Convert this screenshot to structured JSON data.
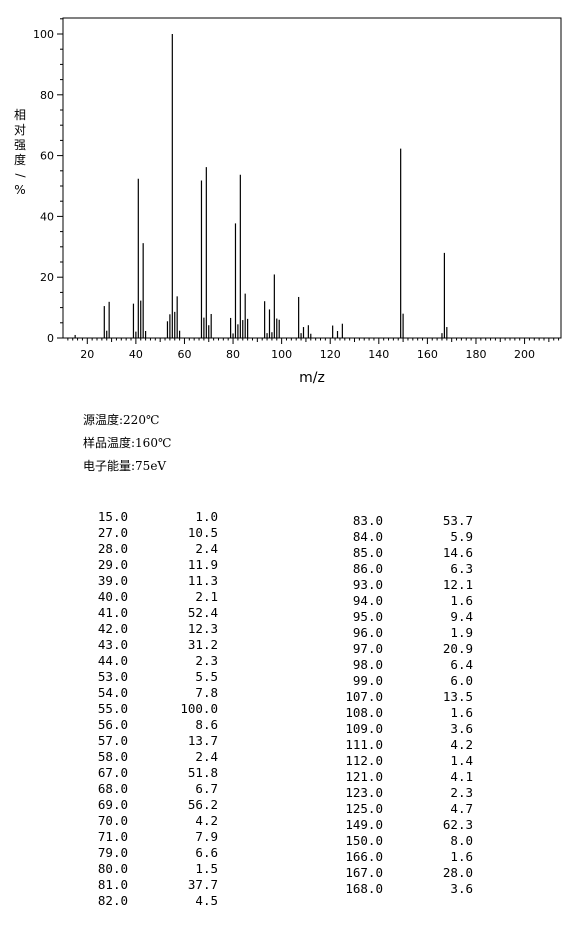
{
  "chart_data": {
    "type": "bar",
    "xlabel": "m/z",
    "ylabel": "相对强度/%",
    "xlim": [
      10,
      215
    ],
    "ylim": [
      0,
      105
    ],
    "xticks": [
      20,
      40,
      60,
      80,
      100,
      120,
      140,
      160,
      180,
      200
    ],
    "yticks": [
      0,
      20,
      40,
      60,
      80,
      100
    ],
    "peaks": [
      {
        "mz": 15,
        "intensity": 1.0
      },
      {
        "mz": 27,
        "intensity": 10.5
      },
      {
        "mz": 28,
        "intensity": 2.4
      },
      {
        "mz": 29,
        "intensity": 11.9
      },
      {
        "mz": 39,
        "intensity": 11.3
      },
      {
        "mz": 40,
        "intensity": 2.1
      },
      {
        "mz": 41,
        "intensity": 52.4
      },
      {
        "mz": 42,
        "intensity": 12.3
      },
      {
        "mz": 43,
        "intensity": 31.2
      },
      {
        "mz": 44,
        "intensity": 2.3
      },
      {
        "mz": 53,
        "intensity": 5.5
      },
      {
        "mz": 54,
        "intensity": 7.8
      },
      {
        "mz": 55,
        "intensity": 100.0
      },
      {
        "mz": 56,
        "intensity": 8.6
      },
      {
        "mz": 57,
        "intensity": 13.7
      },
      {
        "mz": 58,
        "intensity": 2.4
      },
      {
        "mz": 67,
        "intensity": 51.8
      },
      {
        "mz": 68,
        "intensity": 6.7
      },
      {
        "mz": 69,
        "intensity": 56.2
      },
      {
        "mz": 70,
        "intensity": 4.2
      },
      {
        "mz": 71,
        "intensity": 7.9
      },
      {
        "mz": 79,
        "intensity": 6.6
      },
      {
        "mz": 80,
        "intensity": 1.5
      },
      {
        "mz": 81,
        "intensity": 37.7
      },
      {
        "mz": 82,
        "intensity": 4.5
      },
      {
        "mz": 83,
        "intensity": 53.7
      },
      {
        "mz": 84,
        "intensity": 5.9
      },
      {
        "mz": 85,
        "intensity": 14.6
      },
      {
        "mz": 86,
        "intensity": 6.3
      },
      {
        "mz": 93,
        "intensity": 12.1
      },
      {
        "mz": 94,
        "intensity": 1.6
      },
      {
        "mz": 95,
        "intensity": 9.4
      },
      {
        "mz": 96,
        "intensity": 1.9
      },
      {
        "mz": 97,
        "intensity": 20.9
      },
      {
        "mz": 98,
        "intensity": 6.4
      },
      {
        "mz": 99,
        "intensity": 6.0
      },
      {
        "mz": 107,
        "intensity": 13.5
      },
      {
        "mz": 108,
        "intensity": 1.6
      },
      {
        "mz": 109,
        "intensity": 3.6
      },
      {
        "mz": 111,
        "intensity": 4.2
      },
      {
        "mz": 112,
        "intensity": 1.4
      },
      {
        "mz": 121,
        "intensity": 4.1
      },
      {
        "mz": 123,
        "intensity": 2.3
      },
      {
        "mz": 125,
        "intensity": 4.7
      },
      {
        "mz": 149,
        "intensity": 62.3
      },
      {
        "mz": 150,
        "intensity": 8.0
      },
      {
        "mz": 166,
        "intensity": 1.6
      },
      {
        "mz": 167,
        "intensity": 28.0
      },
      {
        "mz": 168,
        "intensity": 3.6
      }
    ]
  },
  "params": {
    "source_temp": "源温度:220℃",
    "sample_temp": "样品温度:160℃",
    "electron_energy": "电子能量:75eV"
  },
  "table": {
    "left": [
      [
        "15.0",
        "1.0"
      ],
      [
        "27.0",
        "10.5"
      ],
      [
        "28.0",
        "2.4"
      ],
      [
        "29.0",
        "11.9"
      ],
      [
        "39.0",
        "11.3"
      ],
      [
        "40.0",
        "2.1"
      ],
      [
        "41.0",
        "52.4"
      ],
      [
        "42.0",
        "12.3"
      ],
      [
        "43.0",
        "31.2"
      ],
      [
        "44.0",
        "2.3"
      ],
      [
        "53.0",
        "5.5"
      ],
      [
        "54.0",
        "7.8"
      ],
      [
        "55.0",
        "100.0"
      ],
      [
        "56.0",
        "8.6"
      ],
      [
        "57.0",
        "13.7"
      ],
      [
        "58.0",
        "2.4"
      ],
      [
        "67.0",
        "51.8"
      ],
      [
        "68.0",
        "6.7"
      ],
      [
        "69.0",
        "56.2"
      ],
      [
        "70.0",
        "4.2"
      ],
      [
        "71.0",
        "7.9"
      ],
      [
        "79.0",
        "6.6"
      ],
      [
        "80.0",
        "1.5"
      ],
      [
        "81.0",
        "37.7"
      ],
      [
        "82.0",
        "4.5"
      ]
    ],
    "right": [
      [
        "83.0",
        "53.7"
      ],
      [
        "84.0",
        "5.9"
      ],
      [
        "85.0",
        "14.6"
      ],
      [
        "86.0",
        "6.3"
      ],
      [
        "93.0",
        "12.1"
      ],
      [
        "94.0",
        "1.6"
      ],
      [
        "95.0",
        "9.4"
      ],
      [
        "96.0",
        "1.9"
      ],
      [
        "97.0",
        "20.9"
      ],
      [
        "98.0",
        "6.4"
      ],
      [
        "99.0",
        "6.0"
      ],
      [
        "107.0",
        "13.5"
      ],
      [
        "108.0",
        "1.6"
      ],
      [
        "109.0",
        "3.6"
      ],
      [
        "111.0",
        "4.2"
      ],
      [
        "112.0",
        "1.4"
      ],
      [
        "121.0",
        "4.1"
      ],
      [
        "123.0",
        "2.3"
      ],
      [
        "125.0",
        "4.7"
      ],
      [
        "149.0",
        "62.3"
      ],
      [
        "150.0",
        "8.0"
      ],
      [
        "166.0",
        "1.6"
      ],
      [
        "167.0",
        "28.0"
      ],
      [
        "168.0",
        "3.6"
      ]
    ]
  }
}
